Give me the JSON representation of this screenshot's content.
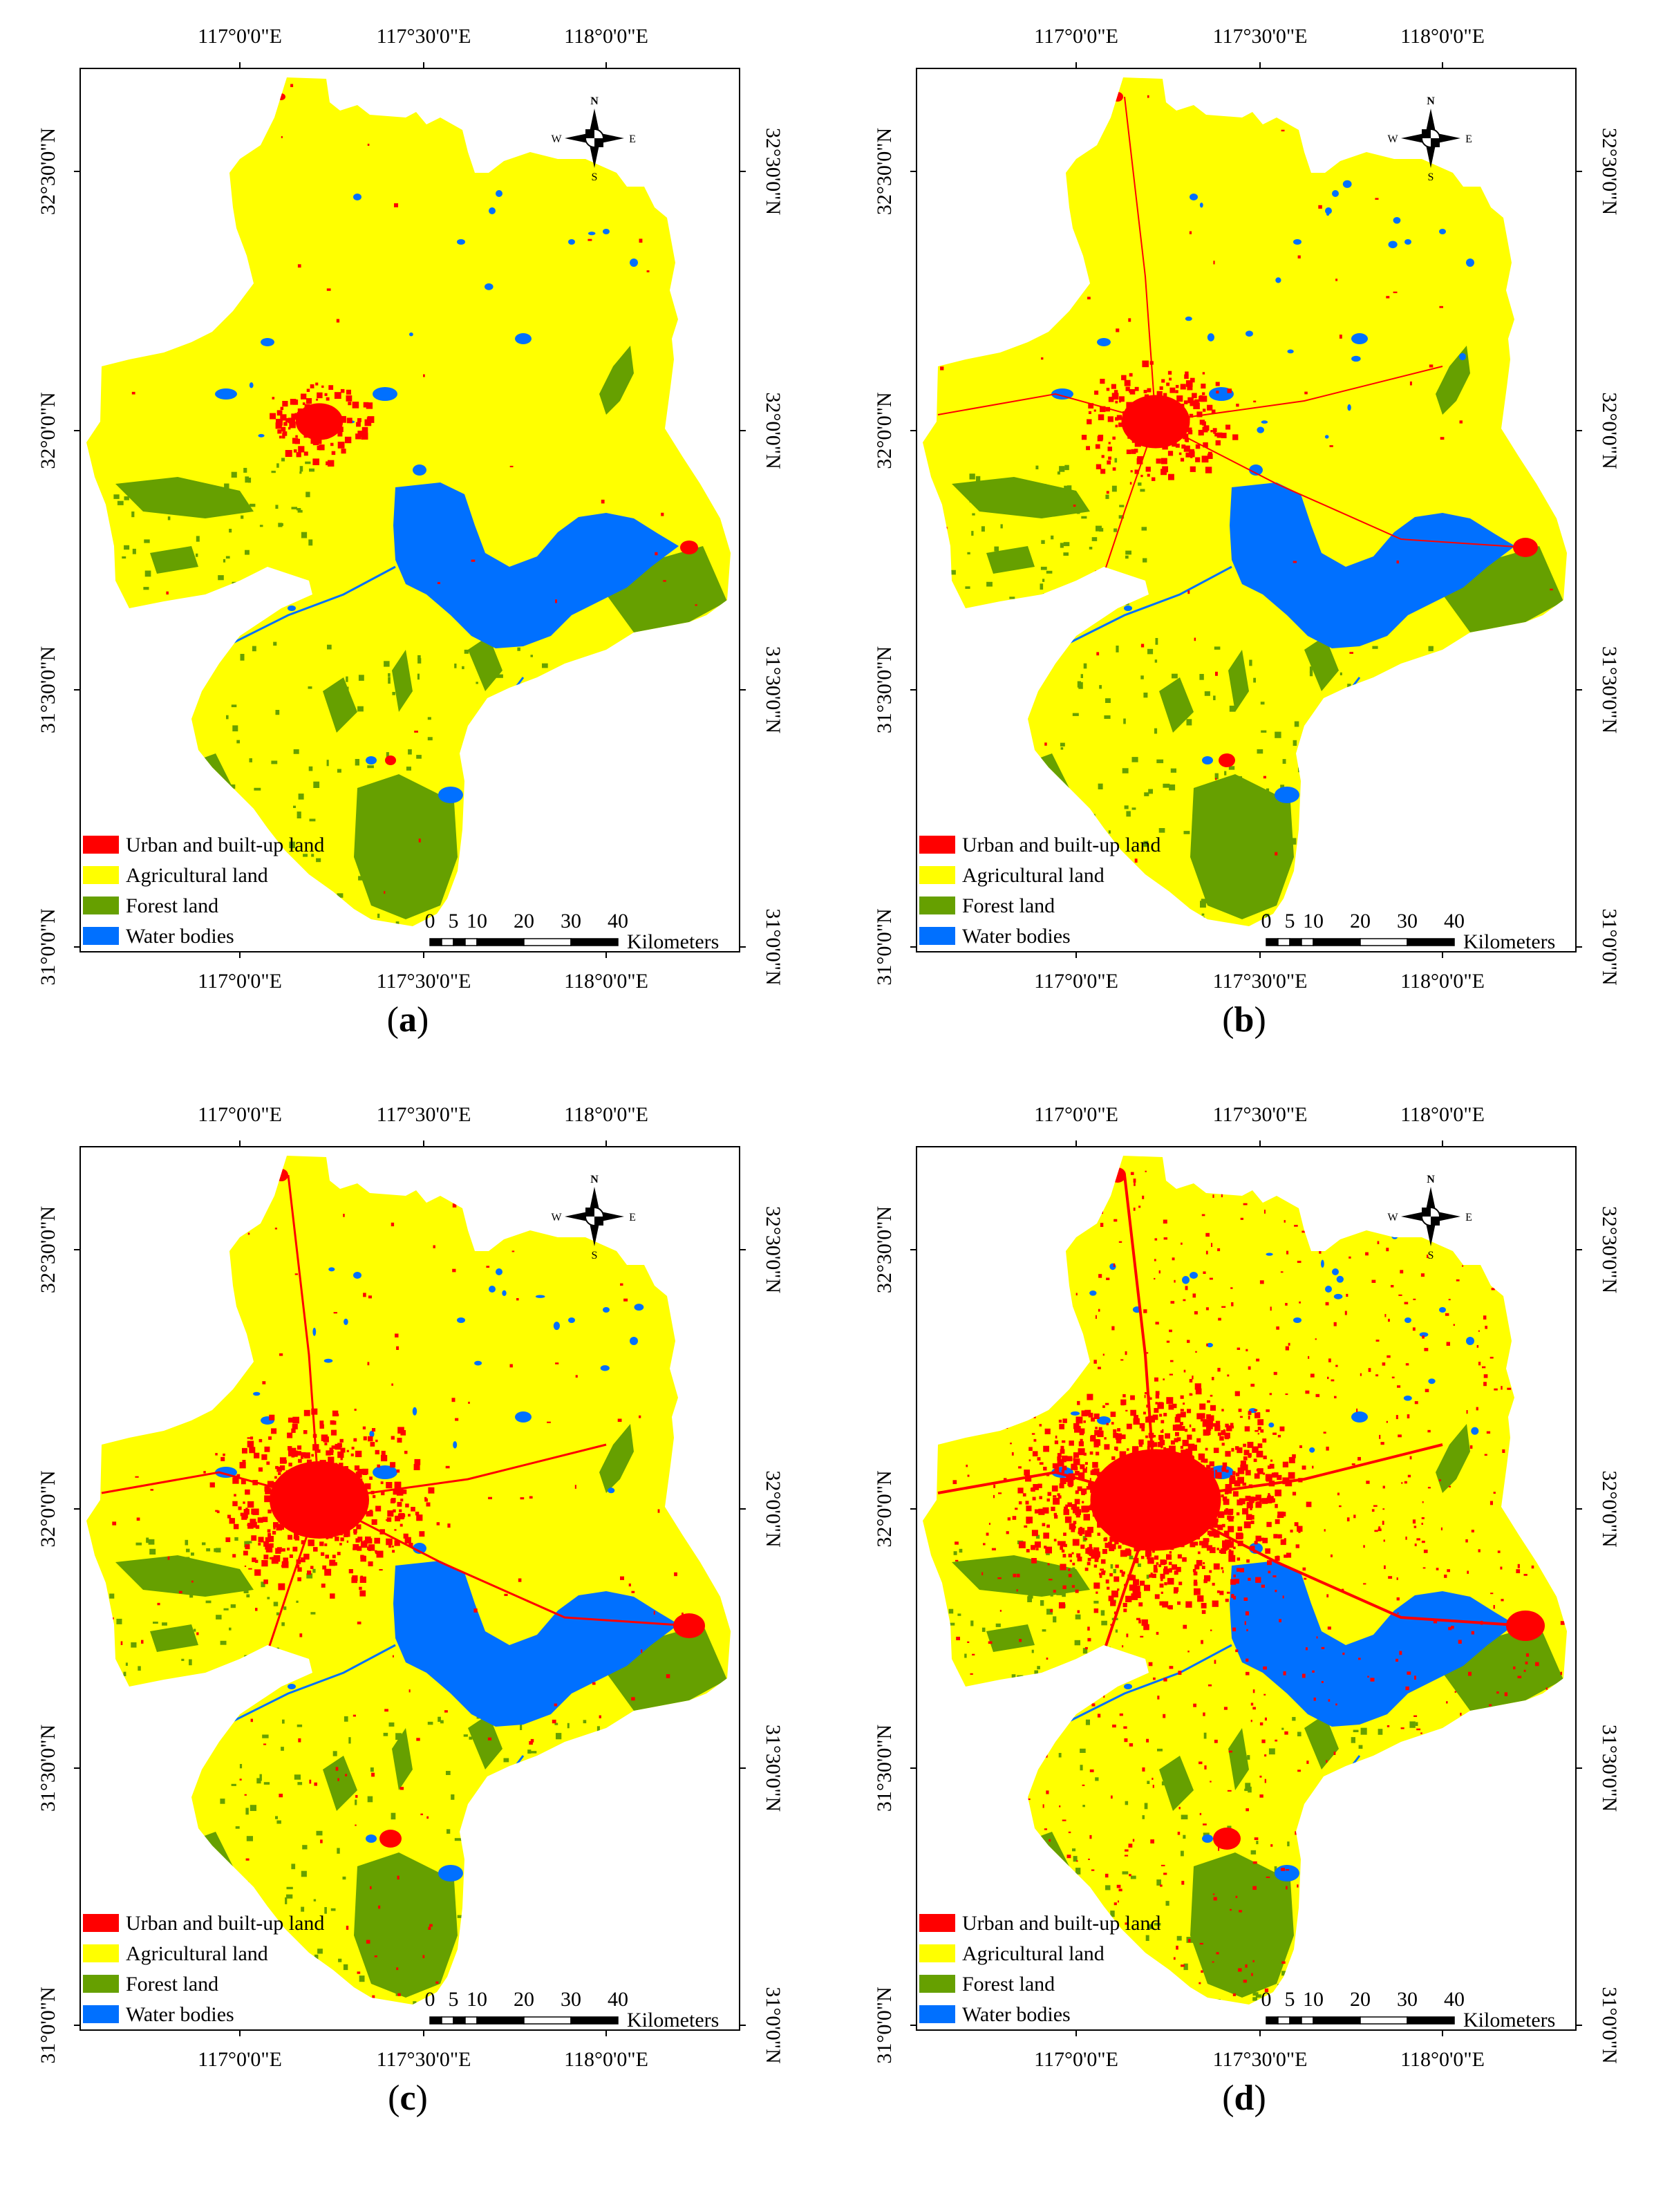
{
  "lon_labels": [
    "117°0'0\"E",
    "117°30'0\"E",
    "118°0'0\"E"
  ],
  "lat_labels": [
    "32°30'0\"N",
    "32°0'0\"N",
    "31°30'0\"N",
    "31°0'0\"N"
  ],
  "legend": [
    {
      "label": "Urban and built-up land",
      "color": "#ff0000"
    },
    {
      "label": "Agricultural land",
      "color": "#ffff00"
    },
    {
      "label": "Forest land",
      "color": "#66a000"
    },
    {
      "label": "Water bodies",
      "color": "#0070ff"
    }
  ],
  "scale": {
    "ticks": [
      "0",
      "5",
      "10",
      "20",
      "30",
      "40"
    ],
    "unit": "Kilometers"
  },
  "compass": {
    "n": "N",
    "s": "S",
    "e": "E",
    "w": "W"
  },
  "panels": [
    {
      "caption": "a",
      "urban_level": 1
    },
    {
      "caption": "b",
      "urban_level": 2
    },
    {
      "caption": "c",
      "urban_level": 3
    },
    {
      "caption": "d",
      "urban_level": 4
    }
  ]
}
